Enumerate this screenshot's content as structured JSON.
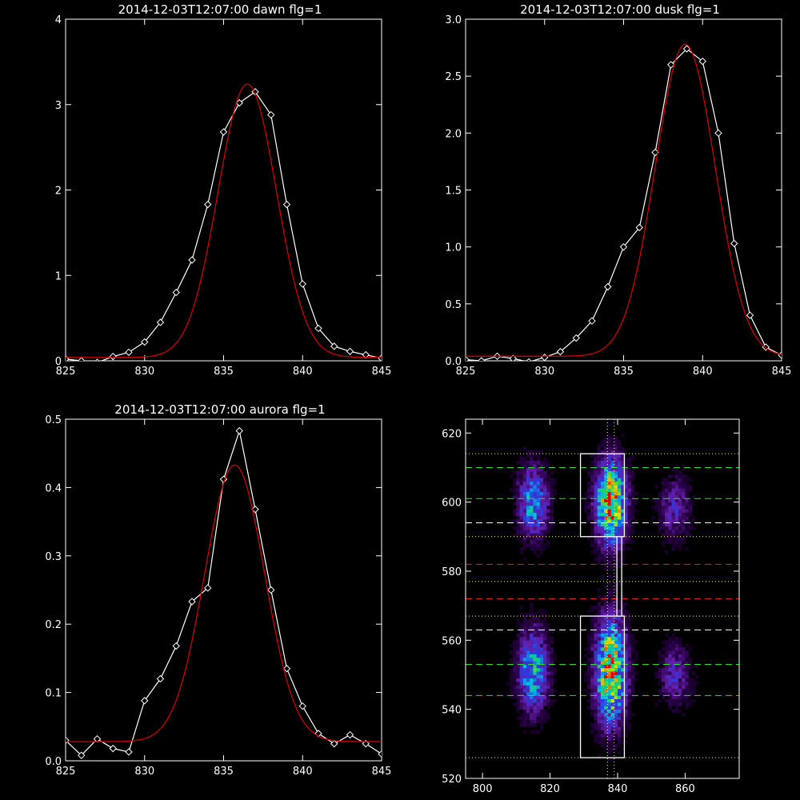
{
  "chart_data": [
    {
      "type": "line",
      "title": "2014-12-03T12:07:00 dawn flg=1",
      "xlim": [
        825,
        845
      ],
      "ylim": [
        0,
        4
      ],
      "xticks": [
        825,
        830,
        835,
        840,
        845
      ],
      "yticks": [
        0,
        1,
        2,
        3,
        4
      ],
      "ytick_labels": [
        "0",
        "1",
        "2",
        "3",
        "4"
      ],
      "series": [
        {
          "color": "#ffffff",
          "marker": "diamond",
          "x": [
            825,
            826,
            827,
            828,
            829,
            830,
            831,
            832,
            833,
            834,
            835,
            836,
            837,
            838,
            839,
            840,
            841,
            842,
            843,
            844,
            845
          ],
          "y": [
            0.02,
            0.0,
            -0.02,
            0.05,
            0.1,
            0.22,
            0.45,
            0.8,
            1.18,
            1.83,
            2.68,
            3.02,
            3.15,
            2.88,
            1.83,
            0.9,
            0.38,
            0.17,
            0.11,
            0.07,
            0.03
          ]
        },
        {
          "color": "#cc0000",
          "marker": "none",
          "fit": "gaussian",
          "amp": 3.2,
          "center": 836.5,
          "sigma": 1.85,
          "offset": 0.04
        }
      ]
    },
    {
      "type": "line",
      "title": "2014-12-03T12:07:00 dusk flg=1",
      "xlim": [
        825,
        845
      ],
      "ylim": [
        0,
        3
      ],
      "xticks": [
        825,
        830,
        835,
        840,
        845
      ],
      "yticks": [
        0,
        0.5,
        1.0,
        1.5,
        2.0,
        2.5,
        3.0
      ],
      "ytick_labels": [
        "0.0",
        "0.5",
        "1.0",
        "1.5",
        "2.0",
        "2.5",
        "3.0"
      ],
      "series": [
        {
          "color": "#ffffff",
          "marker": "diamond",
          "x": [
            825,
            826,
            827,
            828,
            829,
            830,
            831,
            832,
            833,
            834,
            835,
            836,
            837,
            838,
            839,
            840,
            841,
            842,
            843,
            844,
            845
          ],
          "y": [
            0.01,
            0.0,
            0.04,
            0.02,
            -0.01,
            0.03,
            0.08,
            0.2,
            0.35,
            0.65,
            1.0,
            1.17,
            1.83,
            2.6,
            2.74,
            2.63,
            2.0,
            1.03,
            0.4,
            0.12,
            0.05
          ]
        },
        {
          "color": "#cc0000",
          "marker": "none",
          "fit": "gaussian",
          "amp": 2.74,
          "center": 838.9,
          "sigma": 1.9,
          "offset": 0.04
        }
      ]
    },
    {
      "type": "line",
      "title": "2014-12-03T12:07:00 aurora flg=1",
      "xlim": [
        825,
        845
      ],
      "ylim": [
        0,
        0.5
      ],
      "xticks": [
        825,
        830,
        835,
        840,
        845
      ],
      "yticks": [
        0,
        0.1,
        0.2,
        0.3,
        0.4,
        0.5
      ],
      "ytick_labels": [
        "0.0",
        "0.1",
        "0.2",
        "0.3",
        "0.4",
        "0.5"
      ],
      "series": [
        {
          "color": "#ffffff",
          "marker": "diamond",
          "x": [
            825,
            826,
            827,
            828,
            829,
            830,
            831,
            832,
            833,
            834,
            835,
            836,
            837,
            838,
            839,
            840,
            841,
            842,
            843,
            844,
            845
          ],
          "y": [
            0.03,
            0.008,
            0.032,
            0.018,
            0.013,
            0.088,
            0.12,
            0.168,
            0.233,
            0.253,
            0.412,
            0.483,
            0.368,
            0.25,
            0.135,
            0.08,
            0.04,
            0.025,
            0.038,
            0.025,
            0.01
          ]
        },
        {
          "color": "#cc0000",
          "marker": "none",
          "fit": "gaussian",
          "amp": 0.405,
          "center": 835.7,
          "sigma": 1.9,
          "offset": 0.028
        }
      ]
    },
    {
      "type": "heatmap",
      "title": "",
      "xlim": [
        795,
        876
      ],
      "ylim": [
        520,
        624
      ],
      "xticks": [
        800,
        820,
        840,
        860
      ],
      "yticks": [
        520,
        540,
        560,
        580,
        600,
        620
      ],
      "ytick_labels": [
        "520",
        "540",
        "560",
        "580",
        "600",
        "620"
      ],
      "blobs": [
        {
          "x": 815,
          "y": 600,
          "sx": 3.0,
          "sy": 7,
          "amp": 0.55
        },
        {
          "x": 838,
          "y": 600,
          "sx": 3.0,
          "sy": 8,
          "amp": 1.0
        },
        {
          "x": 857,
          "y": 598,
          "sx": 3.0,
          "sy": 6,
          "amp": 0.3
        },
        {
          "x": 815,
          "y": 551,
          "sx": 3.0,
          "sy": 8,
          "amp": 0.6
        },
        {
          "x": 838,
          "y": 551,
          "sx": 3.0,
          "sy": 10,
          "amp": 1.0
        },
        {
          "x": 857,
          "y": 550,
          "sx": 3.0,
          "sy": 6,
          "amp": 0.3
        }
      ],
      "boxes": [
        {
          "x0": 829,
          "x1": 842,
          "y0": 590,
          "y1": 614
        },
        {
          "x0": 829,
          "x1": 842,
          "y0": 526,
          "y1": 567
        }
      ],
      "connector": {
        "x": 840.5,
        "y0": 567,
        "y1": 590
      },
      "hlines": [
        {
          "y": 614,
          "color": "#ffff66",
          "style": "dotted"
        },
        {
          "y": 610,
          "color": "#33dd33",
          "style": "dashed"
        },
        {
          "y": 601,
          "color": "#33dd33",
          "style": "dashed"
        },
        {
          "y": 594,
          "color": "#ffffff",
          "style": "dashed"
        },
        {
          "y": 590,
          "color": "#ffff66",
          "style": "dotted"
        },
        {
          "y": 582,
          "color": "#dd2222",
          "style": "dashed"
        },
        {
          "y": 577,
          "color": "#ffff66",
          "style": "dotted"
        },
        {
          "y": 572,
          "color": "#dd2222",
          "style": "dashed"
        },
        {
          "y": 567,
          "color": "#ffff66",
          "style": "dotted"
        },
        {
          "y": 563,
          "color": "#ffffff",
          "style": "dashed"
        },
        {
          "y": 553,
          "color": "#33dd33",
          "style": "dashed"
        },
        {
          "y": 544,
          "color": "#33dd33",
          "style": "dashed"
        },
        {
          "y": 526,
          "color": "#ffff66",
          "style": "dotted"
        }
      ],
      "vlines": [
        {
          "x": 837,
          "color": "#ffff66",
          "style": "dotted"
        },
        {
          "x": 839,
          "color": "#ffff66",
          "style": "dotted"
        }
      ]
    }
  ]
}
